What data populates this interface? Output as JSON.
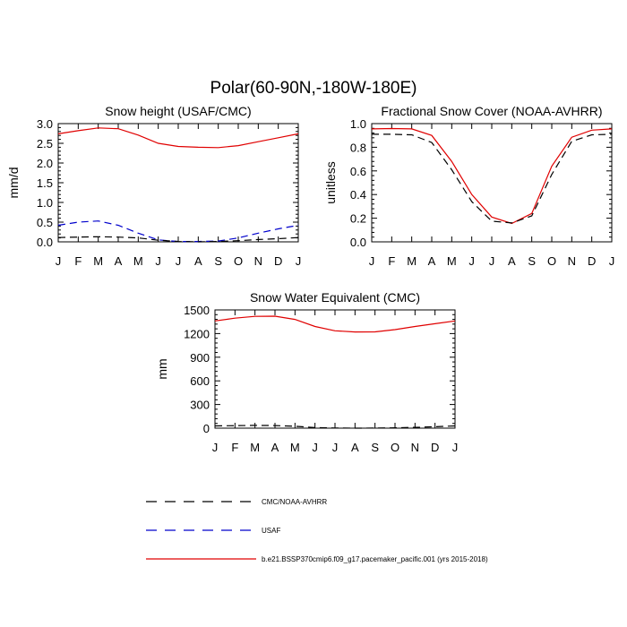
{
  "title": "Polar(60-90N,-180W-180E)",
  "months": [
    "J",
    "F",
    "M",
    "A",
    "M",
    "J",
    "J",
    "A",
    "S",
    "O",
    "N",
    "D",
    "J"
  ],
  "colors": {
    "cmc": "#000000",
    "usaf": "#0000cc",
    "model": "#e00000"
  },
  "legend": [
    {
      "key": "cmc",
      "label": "CMC/NOAA-AVHRR",
      "dash": "dashed"
    },
    {
      "key": "usaf",
      "label": "USAF",
      "dash": "dashed"
    },
    {
      "key": "model",
      "label": "b.e21.BSSP370cmip6.f09_g17.pacemaker_pacific.001 (yrs 2015-2018)",
      "dash": "solid"
    }
  ],
  "chart_data": [
    {
      "type": "line",
      "title": "Snow height (USAF/CMC)",
      "ylabel": "mm/d",
      "ylim": [
        0,
        3
      ],
      "yticks": [
        "0.0",
        "0.5",
        "1.0",
        "1.5",
        "2.0",
        "2.5",
        "3.0"
      ],
      "series": [
        {
          "name": "model",
          "values": [
            2.74,
            2.82,
            2.89,
            2.87,
            2.71,
            2.5,
            2.42,
            2.4,
            2.39,
            2.44,
            2.54,
            2.64,
            2.74
          ]
        },
        {
          "name": "usaf",
          "values": [
            0.42,
            0.5,
            0.53,
            0.42,
            0.22,
            0.05,
            0.01,
            0.01,
            0.02,
            0.1,
            0.22,
            0.33,
            0.42
          ]
        },
        {
          "name": "cmc",
          "values": [
            0.11,
            0.12,
            0.13,
            0.12,
            0.1,
            0.04,
            0.01,
            0.0,
            0.01,
            0.03,
            0.06,
            0.08,
            0.11
          ]
        }
      ]
    },
    {
      "type": "line",
      "title": "Fractional Snow Cover (NOAA-AVHRR)",
      "ylabel": "unitless",
      "ylim": [
        0,
        1
      ],
      "yticks": [
        "0.0",
        "0.2",
        "0.4",
        "0.6",
        "0.8",
        "1.0"
      ],
      "series": [
        {
          "name": "model",
          "values": [
            0.955,
            0.958,
            0.955,
            0.9,
            0.68,
            0.4,
            0.21,
            0.155,
            0.24,
            0.64,
            0.885,
            0.945,
            0.955
          ]
        },
        {
          "name": "cmc",
          "values": [
            0.91,
            0.91,
            0.905,
            0.84,
            0.61,
            0.34,
            0.175,
            0.16,
            0.22,
            0.57,
            0.85,
            0.905,
            0.91
          ]
        }
      ]
    },
    {
      "type": "line",
      "title": "Snow Water Equivalent (CMC)",
      "ylabel": "mm",
      "ylim": [
        0,
        1500
      ],
      "yticks": [
        "0",
        "300",
        "600",
        "900",
        "1200",
        "1500"
      ],
      "series": [
        {
          "name": "model",
          "values": [
            1360,
            1395,
            1418,
            1420,
            1380,
            1290,
            1235,
            1220,
            1222,
            1250,
            1290,
            1325,
            1360
          ]
        },
        {
          "name": "cmc",
          "values": [
            28,
            32,
            35,
            33,
            24,
            8,
            2,
            0,
            1,
            4,
            10,
            18,
            28
          ]
        }
      ]
    }
  ]
}
